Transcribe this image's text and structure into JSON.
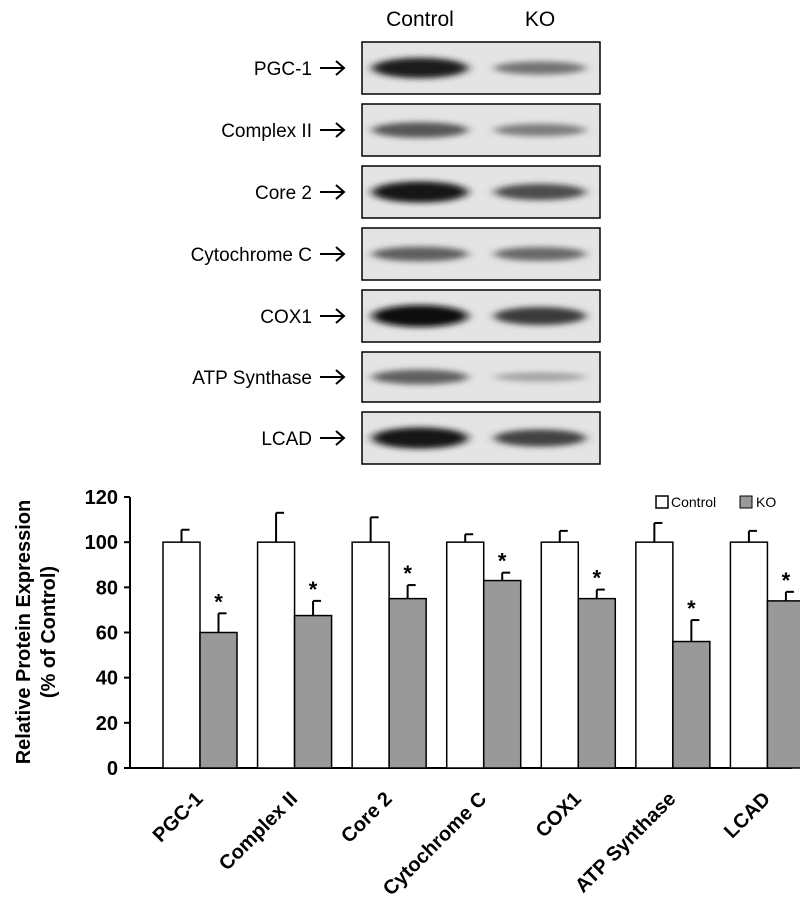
{
  "blot": {
    "columns": [
      "Control",
      "KO"
    ],
    "rows": [
      {
        "label": "PGC-1",
        "control_intensity": 0.9,
        "ko_intensity": 0.45
      },
      {
        "label": "Complex II",
        "control_intensity": 0.6,
        "ko_intensity": 0.4
      },
      {
        "label": "Core 2",
        "control_intensity": 0.95,
        "ko_intensity": 0.65
      },
      {
        "label": "Cytochrome C",
        "control_intensity": 0.55,
        "ko_intensity": 0.5
      },
      {
        "label": "COX1",
        "control_intensity": 1.0,
        "ko_intensity": 0.75
      },
      {
        "label": "ATP Synthase",
        "control_intensity": 0.55,
        "ko_intensity": 0.2
      },
      {
        "label": "LCAD",
        "control_intensity": 0.95,
        "ko_intensity": 0.7
      }
    ]
  },
  "chart_data": {
    "type": "bar",
    "ylabel_line1": "Relative Protein Expression",
    "ylabel_line2": "(% of Control)",
    "ylim": [
      0,
      120
    ],
    "yticks": [
      0,
      20,
      40,
      60,
      80,
      100,
      120
    ],
    "categories": [
      "PGC-1",
      "Complex II",
      "Core 2",
      "Cytochrome C",
      "COX1",
      "ATP Synthase",
      "LCAD"
    ],
    "series": [
      {
        "name": "Control",
        "color": "#ffffff",
        "values": [
          100,
          100,
          100,
          100,
          100,
          100,
          100
        ],
        "errors": [
          5.5,
          13,
          11,
          3.5,
          5,
          8.5,
          5
        ]
      },
      {
        "name": "KO",
        "color": "#999999",
        "values": [
          60,
          67.5,
          75,
          83,
          75,
          56,
          74
        ],
        "errors": [
          8.5,
          6.5,
          6,
          3.5,
          4,
          9.5,
          4
        ]
      }
    ],
    "significance": [
      "*",
      "*",
      "*",
      "*",
      "*",
      "*",
      "*"
    ],
    "legend": {
      "position": "top-right"
    }
  }
}
